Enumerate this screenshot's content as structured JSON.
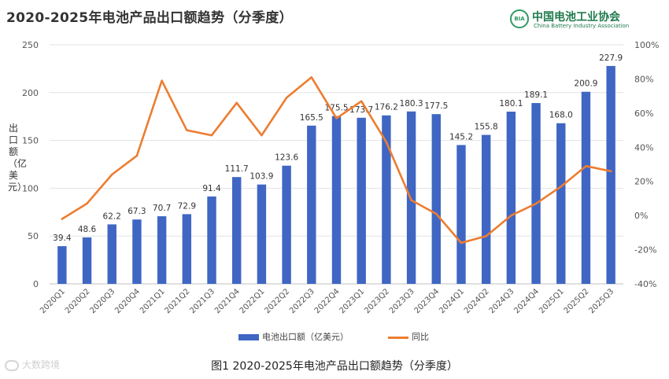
{
  "chart_data": {
    "type": "bar",
    "title": "2020-2025年电池产品出口额趋势（分季度）",
    "ylabel": "出口额（亿美元）",
    "ylabel_right": "",
    "ylim": [
      0,
      250
    ],
    "yticks": [
      "0",
      "50",
      "100",
      "150",
      "200",
      "250"
    ],
    "y2lim": [
      -40,
      100
    ],
    "y2ticks": [
      "-40%",
      "-20%",
      "0%",
      "20%",
      "40%",
      "60%",
      "80%",
      "100%"
    ],
    "categories": [
      "2020Q1",
      "2020Q2",
      "2020Q3",
      "2020Q4",
      "2021Q1",
      "2021Q2",
      "2021Q3",
      "2021Q4",
      "2022Q1",
      "2022Q2",
      "2022Q3",
      "2022Q4",
      "2023Q1",
      "2023Q2",
      "2023Q3",
      "2023Q4",
      "2024Q1",
      "2024Q2",
      "2024Q3",
      "2024Q4",
      "2025Q1",
      "2025Q2",
      "2025Q3"
    ],
    "series": [
      {
        "name": "电池出口额（亿美元）",
        "type": "bar",
        "color": "#3f66c3",
        "values": [
          39.4,
          48.6,
          62.2,
          67.3,
          70.7,
          72.9,
          91.4,
          111.7,
          103.9,
          123.6,
          165.5,
          175.5,
          173.7,
          176.2,
          180.3,
          177.5,
          145.2,
          155.8,
          180.1,
          189.1,
          168.0,
          200.9,
          227.9
        ],
        "labels": [
          "39.4",
          "48.6",
          "62.2",
          "67.3",
          "70.7",
          "72.9",
          "91.4",
          "111.7",
          "103.9",
          "123.6",
          "165.5",
          "175.5",
          "173.7",
          "176.2",
          "180.3",
          "177.5",
          "145.2",
          "155.8",
          "180.1",
          "189.1",
          "168.0",
          "200.9",
          "227.9"
        ]
      },
      {
        "name": "同比",
        "type": "line",
        "axis": "right",
        "color": "#ed7d31",
        "values": [
          -2,
          7,
          24,
          35,
          79,
          50,
          47,
          66,
          47,
          69,
          81,
          57,
          67,
          43,
          9,
          1,
          -16,
          -12,
          0,
          7,
          17,
          29,
          26
        ]
      }
    ],
    "legend": "bottom-center",
    "grid": true
  },
  "logo": {
    "mark": "BIA",
    "name": "中国电池工业协会",
    "sub": "China Battery Industry Association"
  },
  "watermark": "大数跨境",
  "caption": "图1 2020-2025年电池产品出口额趋势（分季度）"
}
